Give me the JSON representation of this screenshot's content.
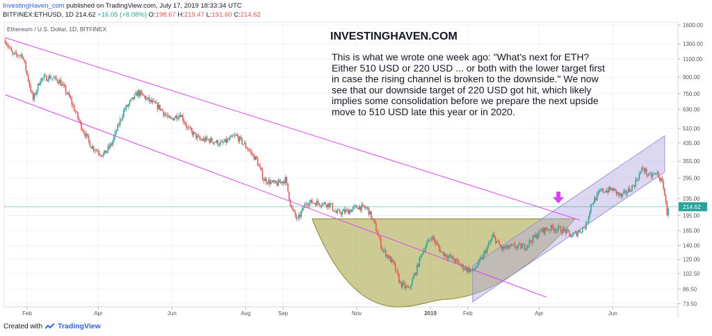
{
  "header": {
    "author": "InvestingHaven_com",
    "published": "published on TradingView.com, July 17, 2019 18:33:34 UTC",
    "symbol": "BITFINEX:ETHUSD, 1D",
    "last": "214.62",
    "change": "+16.05 (+8.08%)",
    "o_label": "O:",
    "o_value": "198.67",
    "h_label": "H:",
    "h_value": "219.47",
    "l_label": "L:",
    "l_value": "191.60",
    "c_label": "C:",
    "c_value": "214.62"
  },
  "footer": {
    "created_with": "Created with",
    "brand": "TradingView"
  },
  "colors": {
    "up": "#26a69a",
    "down": "#ef5350",
    "channel": "#e040fb",
    "bowl_fill": "#a3a03a",
    "rising_channel_fill": "#b3a8e0",
    "price_line": "#26a69a"
  },
  "chart_data": {
    "type": "candlestick",
    "title": "Ethereum / U.S. Dollar, 1D, BITFINEX",
    "watermark": "INVESTINGHAVEN.COM",
    "annotation": "This is what we wrote one week ago: \"What's next for ETH? Either 510 USD or 220 USD ... or both with the lower target first in case the rising channel is broken to the downside.\" We now see that our downside target of 220 USD got hit, which likely implies some consolidation before we prepare the next upside move to 510 USD late this year or in 2020.",
    "annotation_lines": [
      "This is what we wrote one week ago: \"What's next for ETH?",
      "Either 510 USD or 220 USD ... or both with the lower target first",
      "in case the rising channel is broken to the downside.\" We now",
      "see that our downside target of 220 USD got hit, which likely",
      "implies some consolidation before we prepare the next upside",
      "move to 510 USD late this year or in 2020."
    ],
    "scale": "log",
    "ylim": [
      71,
      1650
    ],
    "xlim": [
      "2018-01-13",
      "2019-07-25"
    ],
    "y_ticks": [
      "1600.00",
      "1300.00",
      "1100.00",
      "900.00",
      "750.00",
      "630.00",
      "510.00",
      "435.00",
      "355.00",
      "295.00",
      "235.00",
      "195.00",
      "165.00",
      "140.00",
      "120.00",
      "102.50",
      "86.50",
      "73.50"
    ],
    "y_tick_values": [
      1600,
      1300,
      1100,
      900,
      750,
      630,
      510,
      435,
      355,
      295,
      235,
      195,
      165,
      140,
      120,
      102.5,
      86.5,
      73.5
    ],
    "last_price_label": "214.62",
    "last_price": 214.62,
    "x_ticks": [
      {
        "label": "Feb",
        "date": "2018-02-01"
      },
      {
        "label": "Apr",
        "date": "2018-04-01"
      },
      {
        "label": "Jun",
        "date": "2018-06-01"
      },
      {
        "label": "Aug",
        "date": "2018-08-01"
      },
      {
        "label": "Sep",
        "date": "2018-09-01"
      },
      {
        "label": "Nov",
        "date": "2018-11-01"
      },
      {
        "label": "2019",
        "date": "2019-01-01"
      },
      {
        "label": "Feb",
        "date": "2019-02-01"
      },
      {
        "label": "Apr",
        "date": "2019-04-01"
      },
      {
        "label": "Jun",
        "date": "2019-06-01"
      }
    ],
    "price_path": [
      [
        "2018-01-14",
        1350
      ],
      [
        "2018-01-20",
        1150
      ],
      [
        "2018-01-28",
        1150
      ],
      [
        "2018-02-06",
        700
      ],
      [
        "2018-02-12",
        880
      ],
      [
        "2018-02-20",
        900
      ],
      [
        "2018-02-28",
        860
      ],
      [
        "2018-03-08",
        720
      ],
      [
        "2018-03-18",
        520
      ],
      [
        "2018-03-26",
        420
      ],
      [
        "2018-04-05",
        380
      ],
      [
        "2018-04-12",
        430
      ],
      [
        "2018-04-22",
        620
      ],
      [
        "2018-05-04",
        760
      ],
      [
        "2018-05-12",
        700
      ],
      [
        "2018-05-22",
        640
      ],
      [
        "2018-05-30",
        560
      ],
      [
        "2018-06-08",
        600
      ],
      [
        "2018-06-14",
        510
      ],
      [
        "2018-06-24",
        450
      ],
      [
        "2018-07-01",
        450
      ],
      [
        "2018-07-12",
        430
      ],
      [
        "2018-07-24",
        470
      ],
      [
        "2018-08-01",
        420
      ],
      [
        "2018-08-10",
        360
      ],
      [
        "2018-08-16",
        290
      ],
      [
        "2018-08-26",
        275
      ],
      [
        "2018-09-03",
        290
      ],
      [
        "2018-09-08",
        210
      ],
      [
        "2018-09-13",
        185
      ],
      [
        "2018-09-20",
        225
      ],
      [
        "2018-09-28",
        225
      ],
      [
        "2018-10-10",
        220
      ],
      [
        "2018-10-15",
        200
      ],
      [
        "2018-10-25",
        205
      ],
      [
        "2018-11-02",
        215
      ],
      [
        "2018-11-10",
        210
      ],
      [
        "2018-11-16",
        175
      ],
      [
        "2018-11-22",
        135
      ],
      [
        "2018-12-01",
        115
      ],
      [
        "2018-12-07",
        92
      ],
      [
        "2018-12-14",
        86
      ],
      [
        "2018-12-20",
        105
      ],
      [
        "2018-12-25",
        130
      ],
      [
        "2019-01-02",
        155
      ],
      [
        "2019-01-10",
        130
      ],
      [
        "2019-01-20",
        120
      ],
      [
        "2019-01-28",
        110
      ],
      [
        "2019-02-05",
        105
      ],
      [
        "2019-02-12",
        120
      ],
      [
        "2019-02-22",
        155
      ],
      [
        "2019-03-01",
        135
      ],
      [
        "2019-03-10",
        138
      ],
      [
        "2019-03-20",
        138
      ],
      [
        "2019-04-03",
        165
      ],
      [
        "2019-04-12",
        170
      ],
      [
        "2019-04-22",
        165
      ],
      [
        "2019-04-28",
        155
      ],
      [
        "2019-05-05",
        165
      ],
      [
        "2019-05-10",
        175
      ],
      [
        "2019-05-14",
        220
      ],
      [
        "2019-05-22",
        255
      ],
      [
        "2019-06-01",
        260
      ],
      [
        "2019-06-08",
        240
      ],
      [
        "2019-06-18",
        270
      ],
      [
        "2019-06-26",
        330
      ],
      [
        "2019-07-01",
        300
      ],
      [
        "2019-07-08",
        310
      ],
      [
        "2019-07-13",
        270
      ],
      [
        "2019-07-16",
        200
      ],
      [
        "2019-07-17",
        214.62
      ]
    ],
    "overlays": {
      "upper_trendline": [
        [
          "2018-01-14",
          1390
        ],
        [
          "2019-05-05",
          185
        ]
      ],
      "lower_trendline": [
        [
          "2018-01-14",
          740
        ],
        [
          "2019-04-07",
          79
        ]
      ],
      "rounding_bottom": {
        "left": [
          "2018-09-25",
          188
        ],
        "bottom": [
          "2019-01-12",
          77
        ],
        "right": [
          "2019-05-01",
          188
        ]
      },
      "rising_channel": {
        "upper": [
          [
            "2019-02-05",
            112
          ],
          [
            "2019-07-14",
            470
          ]
        ],
        "lower": [
          [
            "2019-02-05",
            75
          ],
          [
            "2019-07-14",
            315
          ]
        ]
      },
      "arrow_at": [
        "2019-04-17",
        235
      ]
    }
  }
}
